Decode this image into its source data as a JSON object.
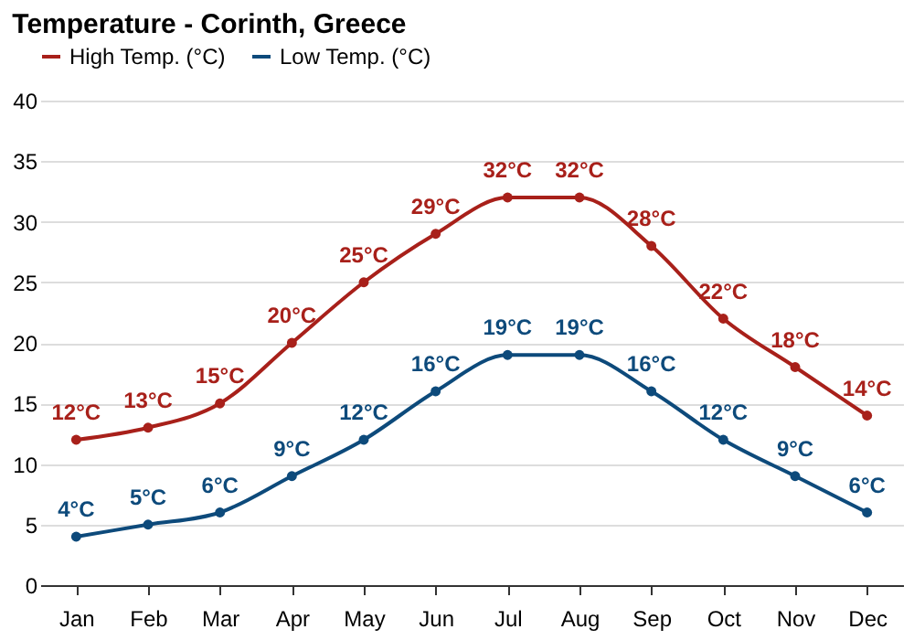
{
  "chart_data": {
    "type": "line",
    "title": "Temperature - Corinth, Greece",
    "categories": [
      "Jan",
      "Feb",
      "Mar",
      "Apr",
      "May",
      "Jun",
      "Jul",
      "Aug",
      "Sep",
      "Oct",
      "Nov",
      "Dec"
    ],
    "series": [
      {
        "name": "High Temp. (°C)",
        "color": "#a8201a",
        "values": [
          12,
          13,
          15,
          20,
          25,
          29,
          32,
          32,
          28,
          22,
          18,
          14
        ],
        "value_labels": [
          "12°C",
          "13°C",
          "15°C",
          "20°C",
          "25°C",
          "29°C",
          "32°C",
          "32°C",
          "28°C",
          "22°C",
          "18°C",
          "14°C"
        ]
      },
      {
        "name": "Low Temp. (°C)",
        "color": "#0d4a7b",
        "values": [
          4,
          5,
          6,
          9,
          12,
          16,
          19,
          19,
          16,
          12,
          9,
          6
        ],
        "value_labels": [
          "4°C",
          "5°C",
          "6°C",
          "9°C",
          "12°C",
          "16°C",
          "19°C",
          "19°C",
          "16°C",
          "12°C",
          "9°C",
          "6°C"
        ]
      }
    ],
    "ylim": [
      0,
      40
    ],
    "yticks": [
      0,
      5,
      10,
      15,
      20,
      25,
      30,
      35,
      40
    ],
    "grid": "y",
    "legend": "top left",
    "marker": "circle",
    "line_style": "solid"
  }
}
